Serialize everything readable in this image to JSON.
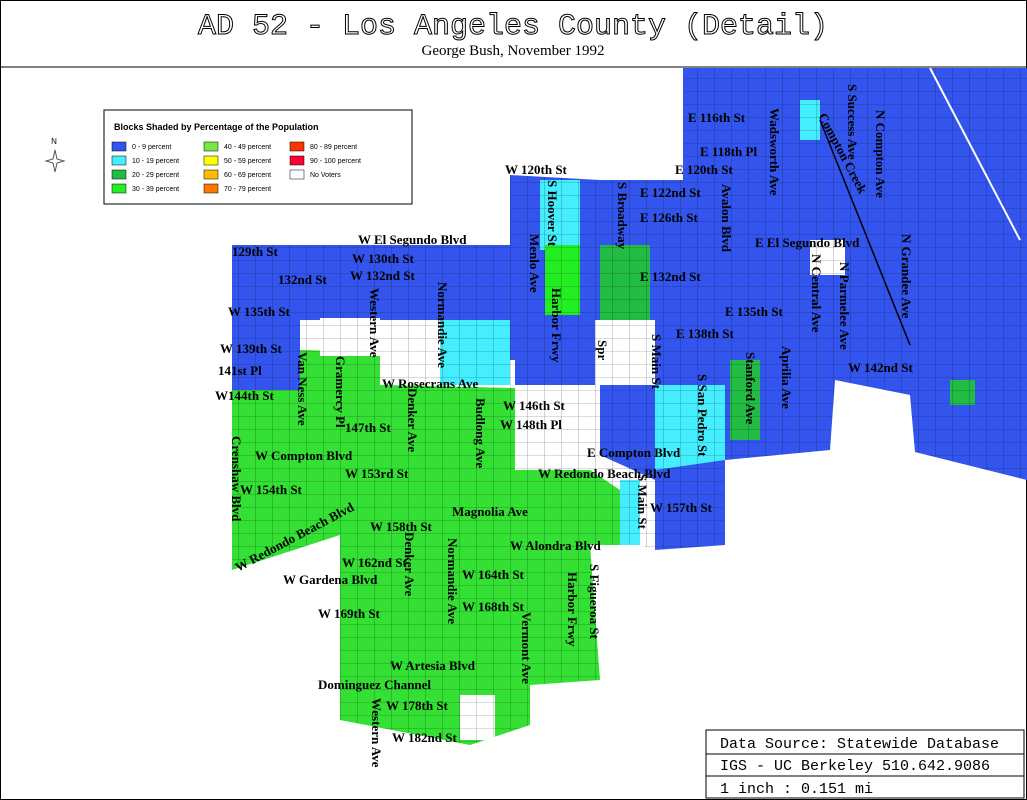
{
  "header": {
    "title": "AD 52 - Los Angeles County (Detail)",
    "subtitle": "George Bush, November 1992"
  },
  "north": "N",
  "legend": {
    "title": "Blocks Shaded by Percentage of the Population",
    "items": [
      {
        "label": "0 - 9 percent",
        "color": "#3355ee"
      },
      {
        "label": "10 - 19 percent",
        "color": "#44eeff"
      },
      {
        "label": "20 - 29 percent",
        "color": "#22bb44"
      },
      {
        "label": "30 - 39 percent",
        "color": "#22ee22"
      },
      {
        "label": "40 - 49 percent",
        "color": "#77e844"
      },
      {
        "label": "50 - 59 percent",
        "color": "#ffff00"
      },
      {
        "label": "60 - 69 percent",
        "color": "#ffbb00"
      },
      {
        "label": "70 - 79 percent",
        "color": "#ff7700"
      },
      {
        "label": "80 - 89 percent",
        "color": "#ff3300"
      },
      {
        "label": "90 - 100 percent",
        "color": "#ff0033"
      },
      {
        "label": "No Voters",
        "color": "#ffffff"
      }
    ]
  },
  "streets": [
    "W El Segundo Blvd",
    "129th St",
    "W 130th St",
    "W 132nd St",
    "132nd St",
    "W 135th St",
    "W 139th St",
    "141st Pl",
    "W144th St",
    "Van Ness Ave",
    "Gramercy Pl",
    "Western Ave",
    "Normandie Ave",
    "W Rosecrans Ave",
    "Denker Ave",
    "147th St",
    "Budlong Ave",
    "W 146th St",
    "W 148th Pl",
    "Crenshaw Blvd",
    "W Compton Blvd",
    "W 153rd St",
    "W 154th St",
    "W Redondo Beach Blvd",
    "W 158th St",
    "Magnolia Ave",
    "W 162nd St",
    "W Gardena Blvd",
    "Denker Ave",
    "Normandie Ave",
    "W 164th St",
    "W 169th St",
    "W 168th St",
    "W Artesia Blvd",
    "Dominguez Channel",
    "W 178th St",
    "W 182nd St",
    "Western Ave",
    "W Alondra Blvd",
    "Vermont Ave",
    "Harbor Frwy",
    "S Figueroa St",
    "Harbor Frwy",
    "Menlo Ave",
    "S Hoover St",
    "W 120th St",
    "S Broadway",
    "Spr",
    "S Main St",
    "S San Pedro St",
    "E Compton Blvd",
    "W Redondo Beach Blvd",
    "S Main St",
    "W 157th St",
    "E 116th St",
    "E 118th Pl",
    "E 120th St",
    "E 122nd St",
    "E 126th St",
    "E 132nd St",
    "E 135th St",
    "E 138th St",
    "Avalon Blvd",
    "Wadsworth Ave",
    "Compton Creek",
    "S Success Ave",
    "N Compton Ave",
    "E El Segundo Blvd",
    "N Grandee Ave",
    "N Central Ave",
    "N Parmelee Ave",
    "W 142nd St",
    "Stanford Ave",
    "Aprilia Ave"
  ],
  "info": {
    "source": "Data Source: Statewide Database",
    "org": "IGS - UC Berkeley 510.642.9086",
    "scale": "1 inch : 0.151 mi"
  }
}
